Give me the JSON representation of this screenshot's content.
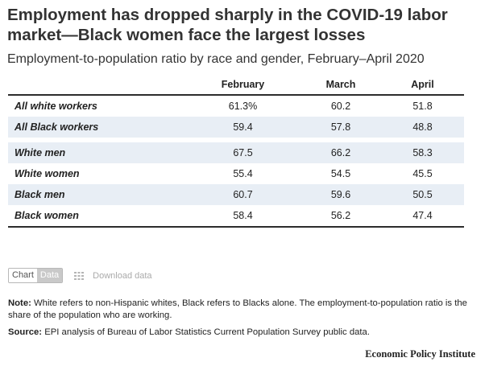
{
  "chart_data": {
    "type": "table",
    "title": "Employment has dropped sharply in the COVID-19 labor market—Black women face the largest losses",
    "subtitle": "Employment-to-population ratio by race and gender, February–April 2020",
    "columns": [
      "",
      "February",
      "March",
      "April"
    ],
    "rows": [
      {
        "label": "All white workers",
        "values": [
          "61.3%",
          "60.2",
          "51.8"
        ]
      },
      {
        "label": "All Black workers",
        "values": [
          "59.4",
          "57.8",
          "48.8"
        ]
      },
      {
        "label": "White men",
        "values": [
          "67.5",
          "66.2",
          "58.3"
        ]
      },
      {
        "label": "White women",
        "values": [
          "55.4",
          "54.5",
          "45.5"
        ]
      },
      {
        "label": "Black men",
        "values": [
          "60.7",
          "59.6",
          "50.5"
        ]
      },
      {
        "label": "Black women",
        "values": [
          "58.4",
          "56.2",
          "47.4"
        ]
      }
    ]
  },
  "controls": {
    "chart_label": "Chart",
    "data_label": "Data",
    "download_label": "Download data"
  },
  "note": {
    "label": "Note:",
    "text": " White refers to non-Hispanic whites, Black refers to Blacks alone. The employment-to-population ratio is the share of the population who are working."
  },
  "source": {
    "label": "Source:",
    "text": " EPI analysis of Bureau of Labor Statistics Current Population Survey public data."
  },
  "credit": "Economic Policy Institute",
  "icons": {
    "download": "grid-icon"
  },
  "colors": {
    "shaded_row": "#e8eef5",
    "rule": "#2c2c2c",
    "toggle_active": "#c9c9c9"
  }
}
